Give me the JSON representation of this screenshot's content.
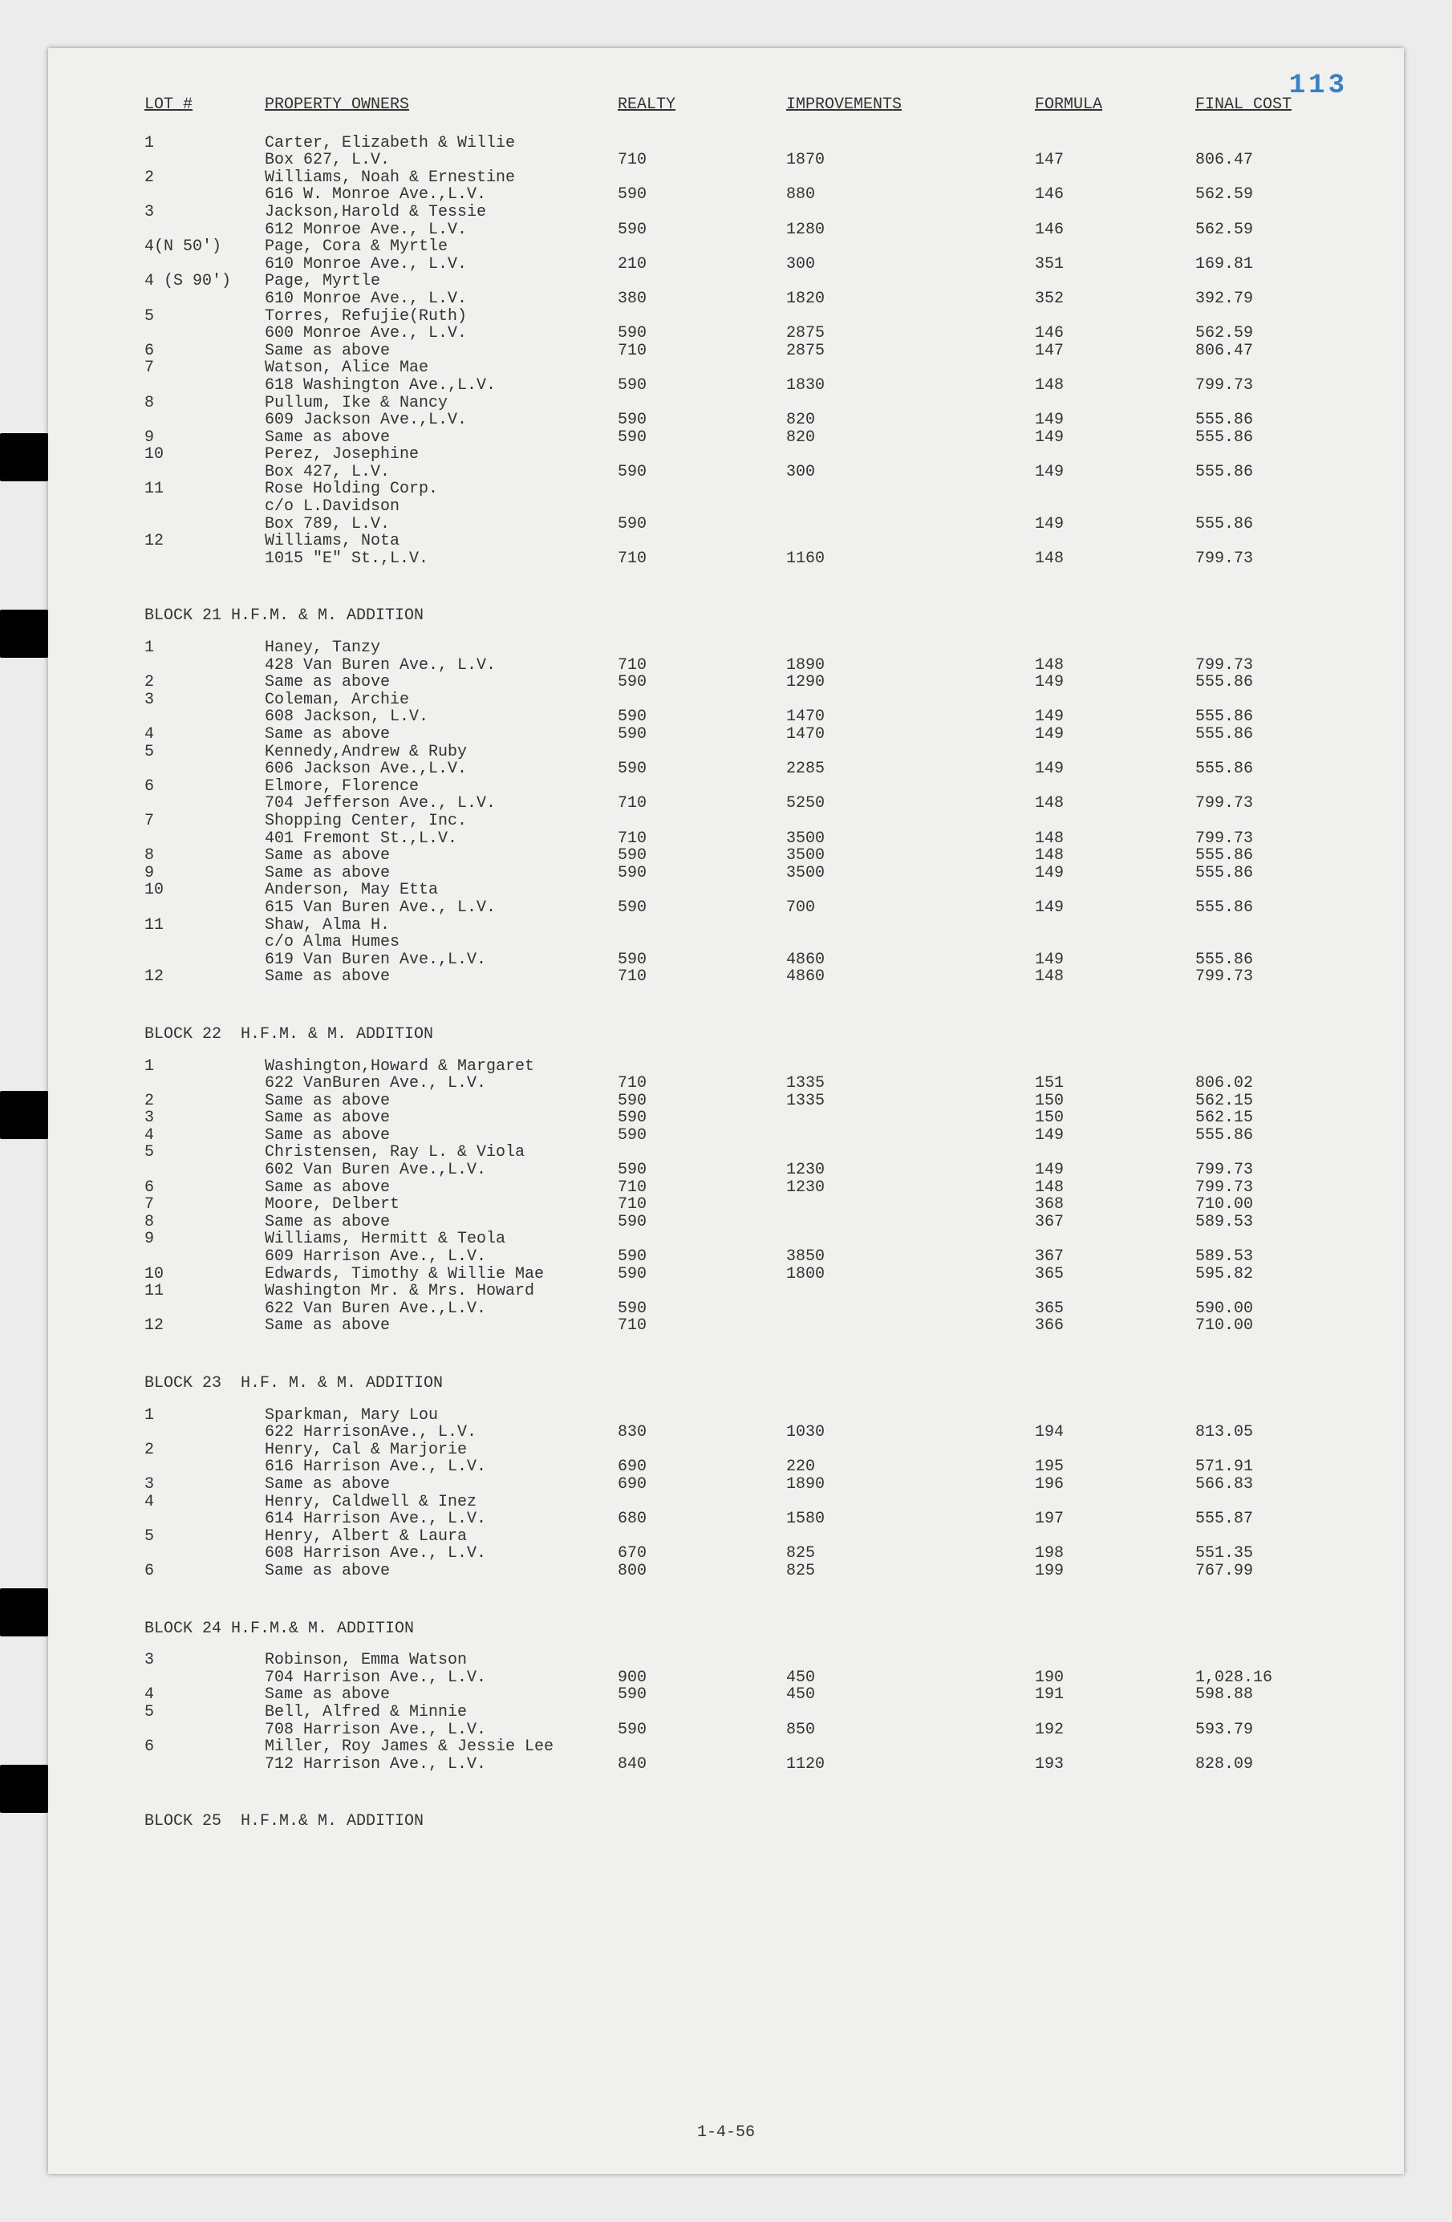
{
  "page_number": "113",
  "footer_date": "1-4-56",
  "headers": {
    "lot": "LOT #",
    "owner": "PROPERTY OWNERS",
    "realty": "REALTY",
    "improvements": "IMPROVEMENTS",
    "formula": "FORMULA",
    "final_cost": "FINAL COST"
  },
  "blocks": [
    {
      "heading": "",
      "rows": [
        {
          "lot": "1",
          "owner": "Carter, Elizabeth & Willie",
          "addr": "Box 627, L.V.",
          "realty": "710",
          "impr": "1870",
          "form": "147",
          "final": "806.47"
        },
        {
          "lot": "2",
          "owner": "Williams, Noah & Ernestine",
          "addr": "616 W. Monroe Ave.,L.V.",
          "realty": "590",
          "impr": "880",
          "form": "146",
          "final": "562.59"
        },
        {
          "lot": "3",
          "owner": "Jackson,Harold & Tessie",
          "addr": "612 Monroe Ave., L.V.",
          "realty": "590",
          "impr": "1280",
          "form": "146",
          "final": "562.59"
        },
        {
          "lot": "4(N 50')",
          "owner": "Page, Cora & Myrtle",
          "addr": "610 Monroe Ave., L.V.",
          "realty": "210",
          "impr": "300",
          "form": "351",
          "final": "169.81"
        },
        {
          "lot": "4 (S 90')",
          "owner": "Page, Myrtle",
          "addr": "610 Monroe Ave., L.V.",
          "realty": "380",
          "impr": "1820",
          "form": "352",
          "final": "392.79"
        },
        {
          "lot": "5",
          "owner": "Torres, Refujie(Ruth)",
          "addr": "600 Monroe Ave., L.V.",
          "realty": "590",
          "impr": "2875",
          "form": "146",
          "final": "562.59"
        },
        {
          "lot": "6",
          "owner": "Same as above",
          "addr": "",
          "realty": "710",
          "impr": "2875",
          "form": "147",
          "final": "806.47"
        },
        {
          "lot": "7",
          "owner": "Watson, Alice Mae",
          "addr": "618 Washington Ave.,L.V.",
          "realty": "590",
          "impr": "1830",
          "form": "148",
          "final": "799.73"
        },
        {
          "lot": "8",
          "owner": "Pullum, Ike & Nancy",
          "addr": "609 Jackson Ave.,L.V.",
          "realty": "590",
          "impr": "820",
          "form": "149",
          "final": "555.86"
        },
        {
          "lot": "9",
          "owner": "Same as above",
          "addr": "",
          "realty": "590",
          "impr": "820",
          "form": "149",
          "final": "555.86"
        },
        {
          "lot": "10",
          "owner": "Perez, Josephine",
          "addr": "Box 427, L.V.",
          "realty": "590",
          "impr": "300",
          "form": "149",
          "final": "555.86"
        },
        {
          "lot": "11",
          "owner": "Rose Holding Corp.",
          "addr": "c/o L.Davidson",
          "addr2": "Box 789, L.V.",
          "realty": "590",
          "impr": "",
          "form": "149",
          "final": "555.86"
        },
        {
          "lot": "12",
          "owner": "Williams, Nota",
          "addr": "1015 \"E\" St.,L.V.",
          "realty": "710",
          "impr": "1160",
          "form": "148",
          "final": "799.73"
        }
      ]
    },
    {
      "heading": "BLOCK 21 H.F.M. & M. ADDITION",
      "rows": [
        {
          "lot": "1",
          "owner": "Haney, Tanzy",
          "addr": "428 Van Buren Ave., L.V.",
          "realty": "710",
          "impr": "1890",
          "form": "148",
          "final": "799.73"
        },
        {
          "lot": "2",
          "owner": "Same as above",
          "addr": "",
          "realty": "590",
          "impr": "1290",
          "form": "149",
          "final": "555.86"
        },
        {
          "lot": "3",
          "owner": "Coleman, Archie",
          "addr": "608 Jackson, L.V.",
          "realty": "590",
          "impr": "1470",
          "form": "149",
          "final": "555.86"
        },
        {
          "lot": "4",
          "owner": "Same as above",
          "addr": "",
          "realty": "590",
          "impr": "1470",
          "form": "149",
          "final": "555.86"
        },
        {
          "lot": "5",
          "owner": "Kennedy,Andrew & Ruby",
          "addr": "606 Jackson Ave.,L.V.",
          "realty": "590",
          "impr": "2285",
          "form": "149",
          "final": "555.86"
        },
        {
          "lot": "6",
          "owner": "Elmore, Florence",
          "addr": "704 Jefferson Ave., L.V.",
          "realty": "710",
          "impr": "5250",
          "form": "148",
          "final": "799.73"
        },
        {
          "lot": "7",
          "owner": "Shopping Center, Inc.",
          "addr": "401 Fremont St.,L.V.",
          "realty": "710",
          "impr": "3500",
          "form": "148",
          "final": "799.73"
        },
        {
          "lot": "8",
          "owner": "Same as above",
          "addr": "",
          "realty": "590",
          "impr": "3500",
          "form": "148",
          "final": "555.86"
        },
        {
          "lot": "9",
          "owner": "Same as above",
          "addr": "",
          "realty": "590",
          "impr": "3500",
          "form": "149",
          "final": "555.86"
        },
        {
          "lot": "10",
          "owner": "Anderson, May Etta",
          "addr": "615 Van Buren Ave., L.V.",
          "realty": "590",
          "impr": "700",
          "form": "149",
          "final": "555.86"
        },
        {
          "lot": "11",
          "owner": "Shaw, Alma H.",
          "addr": "c/o Alma Humes",
          "addr2": "619 Van Buren Ave.,L.V.",
          "realty": "590",
          "impr": "4860",
          "form": "149",
          "final": "555.86"
        },
        {
          "lot": "12",
          "owner": "Same as above",
          "addr": "",
          "realty": "710",
          "impr": "4860",
          "form": "148",
          "final": "799.73"
        }
      ]
    },
    {
      "heading": "BLOCK 22  H.F.M. & M. ADDITION",
      "rows": [
        {
          "lot": "1",
          "owner": "Washington,Howard & Margaret",
          "addr": "622 VanBuren Ave., L.V.",
          "realty": "710",
          "impr": "1335",
          "form": "151",
          "final": "806.02"
        },
        {
          "lot": "2",
          "owner": "Same as above",
          "addr": "",
          "realty": "590",
          "impr": "1335",
          "form": "150",
          "final": "562.15"
        },
        {
          "lot": "3",
          "owner": "Same as above",
          "addr": "",
          "realty": "590",
          "impr": "",
          "form": "150",
          "final": "562.15"
        },
        {
          "lot": "4",
          "owner": "Same as above",
          "addr": "",
          "realty": "590",
          "impr": "",
          "form": "149",
          "final": "555.86"
        },
        {
          "lot": "5",
          "owner": "Christensen, Ray L. & Viola",
          "addr": "602 Van Buren Ave.,L.V.",
          "realty": "590",
          "impr": "1230",
          "form": "149",
          "final": "799.73"
        },
        {
          "lot": "6",
          "owner": "Same as above",
          "addr": "",
          "realty": "710",
          "impr": "1230",
          "form": "148",
          "final": "799.73"
        },
        {
          "lot": "7",
          "owner": "Moore, Delbert",
          "addr": "",
          "realty": "710",
          "impr": "",
          "form": "368",
          "final": "710.00"
        },
        {
          "lot": "8",
          "owner": "Same as above",
          "addr": "",
          "realty": "590",
          "impr": "",
          "form": "367",
          "final": "589.53"
        },
        {
          "lot": "9",
          "owner": "Williams, Hermitt & Teola",
          "addr": "609 Harrison Ave., L.V.",
          "realty": "590",
          "impr": "3850",
          "form": "367",
          "final": "589.53"
        },
        {
          "lot": "10",
          "owner": "Edwards, Timothy & Willie Mae",
          "addr": "",
          "realty": "590",
          "impr": "1800",
          "form": "365",
          "final": "595.82"
        },
        {
          "lot": "11",
          "owner": "Washington Mr. & Mrs. Howard",
          "addr": "622 Van Buren Ave.,L.V.",
          "realty": "590",
          "impr": "",
          "form": "365",
          "final": "590.00"
        },
        {
          "lot": "12",
          "owner": "Same as above",
          "addr": "",
          "realty": "710",
          "impr": "",
          "form": "366",
          "final": "710.00"
        }
      ]
    },
    {
      "heading": "BLOCK 23  H.F. M. & M. ADDITION",
      "rows": [
        {
          "lot": "1",
          "owner": "Sparkman, Mary Lou",
          "addr": "622 HarrisonAve., L.V.",
          "realty": "830",
          "impr": "1030",
          "form": "194",
          "final": "813.05"
        },
        {
          "lot": "2",
          "owner": "Henry, Cal & Marjorie",
          "addr": "616 Harrison Ave., L.V.",
          "realty": "690",
          "impr": "220",
          "form": "195",
          "final": "571.91"
        },
        {
          "lot": "3",
          "owner": "Same as above",
          "addr": "",
          "realty": "690",
          "impr": "1890",
          "form": "196",
          "final": "566.83"
        },
        {
          "lot": "4",
          "owner": "Henry, Caldwell & Inez",
          "addr": "614 Harrison Ave., L.V.",
          "realty": "680",
          "impr": "1580",
          "form": "197",
          "final": "555.87"
        },
        {
          "lot": "5",
          "owner": "Henry, Albert & Laura",
          "addr": "608 Harrison Ave., L.V.",
          "realty": "670",
          "impr": "825",
          "form": "198",
          "final": "551.35"
        },
        {
          "lot": "6",
          "owner": "Same as above",
          "addr": "",
          "realty": "800",
          "impr": "825",
          "form": "199",
          "final": "767.99"
        }
      ]
    },
    {
      "heading": "BLOCK 24 H.F.M.& M. ADDITION",
      "rows": [
        {
          "lot": "3",
          "owner": "Robinson, Emma Watson",
          "addr": "704 Harrison Ave., L.V.",
          "realty": "900",
          "impr": "450",
          "form": "190",
          "final": "1,028.16"
        },
        {
          "lot": "4",
          "owner": "Same as above",
          "addr": "",
          "realty": "590",
          "impr": "450",
          "form": "191",
          "final": "598.88"
        },
        {
          "lot": "5",
          "owner": "Bell, Alfred & Minnie",
          "addr": "708 Harrison Ave., L.V.",
          "realty": "590",
          "impr": "850",
          "form": "192",
          "final": "593.79"
        },
        {
          "lot": "6",
          "owner": "Miller, Roy James & Jessie Lee",
          "addr": "712 Harrison Ave., L.V.",
          "realty": "840",
          "impr": "1120",
          "form": "193",
          "final": "828.09"
        }
      ]
    },
    {
      "heading": "BLOCK 25  H.F.M.& M. ADDITION",
      "rows": []
    }
  ]
}
